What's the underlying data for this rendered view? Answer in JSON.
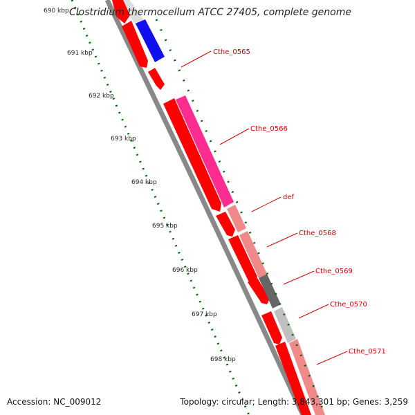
{
  "title": "Clostridium thermocellum ATCC 27405, complete genome",
  "footer": {
    "accession": "Accession: NC_009012",
    "topology": "Topology: circular; Length: 3,843,301 bp; Genes: 3,259"
  },
  "colors": {
    "cds": "#ff0000",
    "cds_highlight": "#ff2d8f",
    "rna_blue": "#1010ee",
    "pseudo_pink": "#f08a8a",
    "dark_gray": "#666666",
    "light_gray": "#c0c0c0",
    "tick_green": "#006600",
    "label_red": "#cc0000"
  },
  "scale_ticks": [
    {
      "label": "690 kbp"
    },
    {
      "label": "691 kbp"
    },
    {
      "label": "692 kbp"
    },
    {
      "label": "693 kbp"
    },
    {
      "label": "694 kbp"
    },
    {
      "label": "695 kbp"
    },
    {
      "label": "696 kbp"
    },
    {
      "label": "697 kbp"
    },
    {
      "label": "698 kbp"
    }
  ],
  "gene_labels": [
    {
      "name": "Cthe_0565"
    },
    {
      "name": "Cthe_0566"
    },
    {
      "name": "def"
    },
    {
      "name": "Cthe_0568"
    },
    {
      "name": "Cthe_0569"
    },
    {
      "name": "Cthe_0570"
    },
    {
      "name": "Cthe_0571"
    }
  ]
}
